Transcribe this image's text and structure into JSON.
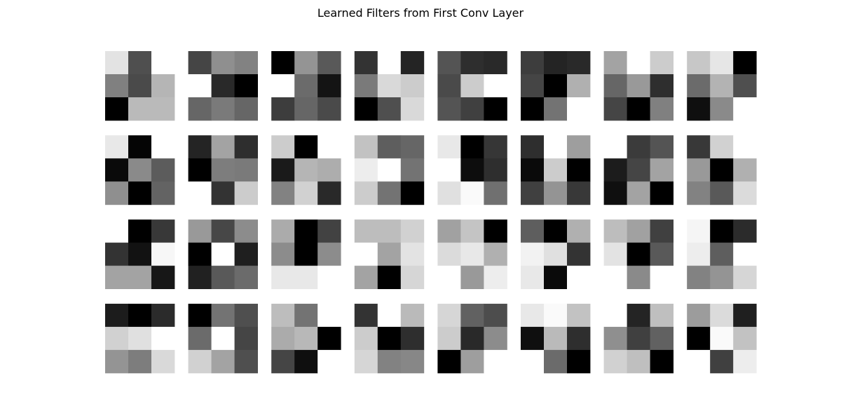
{
  "chart_data": {
    "type": "heatmap",
    "title": "Learned Filters from First Conv Layer",
    "colormap": "gray",
    "grid": false,
    "axes_visible": false,
    "filter_rows": 4,
    "filter_cols": 8,
    "kernel_size": [
      3,
      3
    ],
    "value_range": [
      0,
      1
    ],
    "filters": [
      [
        [
          0.89,
          0.31,
          1.0
        ],
        [
          0.5,
          0.29,
          0.71
        ],
        [
          0.0,
          0.73,
          0.73
        ]
      ],
      [
        [
          0.27,
          0.56,
          0.51
        ],
        [
          1.0,
          0.16,
          0.0
        ],
        [
          0.4,
          0.48,
          0.4
        ]
      ],
      [
        [
          0.0,
          0.58,
          0.35
        ],
        [
          1.0,
          0.42,
          0.08
        ],
        [
          0.24,
          0.4,
          0.29
        ]
      ],
      [
        [
          0.2,
          1.0,
          0.14
        ],
        [
          0.48,
          0.85,
          0.8
        ],
        [
          0.0,
          0.31,
          0.85
        ]
      ],
      [
        [
          0.33,
          0.18,
          0.16
        ],
        [
          0.29,
          0.8,
          1.0
        ],
        [
          0.33,
          0.25,
          0.0
        ]
      ],
      [
        [
          0.24,
          0.14,
          0.16
        ],
        [
          0.27,
          0.0,
          0.69
        ],
        [
          0.0,
          0.45,
          1.0
        ]
      ],
      [
        [
          0.64,
          1.0,
          0.8
        ],
        [
          0.4,
          0.6,
          0.18
        ],
        [
          0.27,
          0.0,
          0.5
        ]
      ],
      [
        [
          0.78,
          0.9,
          0.0
        ],
        [
          0.42,
          0.7,
          0.31
        ],
        [
          0.06,
          0.54,
          1.0
        ]
      ],
      [
        [
          0.91,
          0.02,
          1.0
        ],
        [
          0.04,
          0.54,
          0.36
        ],
        [
          0.56,
          0.0,
          0.39
        ]
      ],
      [
        [
          0.14,
          0.64,
          0.18
        ],
        [
          0.0,
          0.49,
          0.48
        ],
        [
          1.0,
          0.2,
          0.8
        ]
      ],
      [
        [
          0.8,
          0.0,
          1.0
        ],
        [
          0.1,
          0.71,
          0.68
        ],
        [
          0.51,
          0.82,
          0.16
        ]
      ],
      [
        [
          0.76,
          0.37,
          0.4
        ],
        [
          0.93,
          1.0,
          0.45
        ],
        [
          0.8,
          0.45,
          0.0
        ]
      ],
      [
        [
          0.91,
          0.0,
          0.21
        ],
        [
          1.0,
          0.05,
          0.18
        ],
        [
          0.88,
          0.98,
          0.44
        ]
      ],
      [
        [
          0.18,
          1.0,
          0.62
        ],
        [
          0.04,
          0.8,
          0.0
        ],
        [
          0.25,
          0.58,
          0.22
        ]
      ],
      [
        [
          1.0,
          0.23,
          0.33
        ],
        [
          0.11,
          0.27,
          0.64
        ],
        [
          0.06,
          0.64,
          0.0
        ]
      ],
      [
        [
          0.22,
          0.82,
          1.0
        ],
        [
          0.6,
          0.0,
          0.69
        ],
        [
          0.51,
          0.35,
          0.86
        ]
      ],
      [
        [
          1.0,
          0.0,
          0.22
        ],
        [
          0.2,
          0.07,
          0.97
        ],
        [
          0.64,
          0.64,
          0.09
        ]
      ],
      [
        [
          0.6,
          0.28,
          0.55
        ],
        [
          0.0,
          1.0,
          0.12
        ],
        [
          0.13,
          0.35,
          0.42
        ]
      ],
      [
        [
          0.67,
          0.0,
          0.26
        ],
        [
          0.55,
          0.0,
          0.55
        ],
        [
          0.91,
          0.91,
          1.0
        ]
      ],
      [
        [
          0.74,
          0.74,
          0.82
        ],
        [
          1.0,
          0.64,
          0.89
        ],
        [
          0.64,
          0.0,
          0.84
        ]
      ],
      [
        [
          0.63,
          0.77,
          0.0
        ],
        [
          0.86,
          0.91,
          0.69
        ],
        [
          1.0,
          0.6,
          0.93
        ]
      ],
      [
        [
          0.37,
          0.0,
          0.69
        ],
        [
          0.95,
          0.88,
          0.2
        ],
        [
          0.91,
          0.04,
          1.0
        ]
      ],
      [
        [
          0.74,
          0.63,
          0.25
        ],
        [
          0.89,
          0.0,
          0.35
        ],
        [
          1.0,
          0.54,
          1.0
        ]
      ],
      [
        [
          0.96,
          0.0,
          0.17
        ],
        [
          0.93,
          0.37,
          1.0
        ],
        [
          0.51,
          0.58,
          0.84
        ]
      ],
      [
        [
          0.11,
          0.0,
          0.17
        ],
        [
          0.82,
          0.88,
          1.0
        ],
        [
          0.58,
          0.49,
          0.85
        ]
      ],
      [
        [
          0.0,
          0.45,
          0.31
        ],
        [
          0.42,
          1.0,
          0.27
        ],
        [
          0.82,
          0.64,
          0.31
        ]
      ],
      [
        [
          0.74,
          0.45,
          1.0
        ],
        [
          0.67,
          0.72,
          0.0
        ],
        [
          0.27,
          0.06,
          1.0
        ]
      ],
      [
        [
          0.2,
          1.0,
          0.73
        ],
        [
          0.8,
          0.0,
          0.18
        ],
        [
          0.84,
          0.51,
          0.53
        ]
      ],
      [
        [
          0.84,
          0.38,
          0.3
        ],
        [
          0.8,
          0.16,
          0.55
        ],
        [
          0.0,
          0.62,
          1.0
        ]
      ],
      [
        [
          0.91,
          0.98,
          0.76
        ],
        [
          0.06,
          0.73,
          0.18
        ],
        [
          1.0,
          0.42,
          0.0
        ]
      ],
      [
        [
          1.0,
          0.14,
          0.75
        ],
        [
          0.56,
          0.25,
          0.38
        ],
        [
          0.82,
          0.75,
          0.0
        ]
      ],
      [
        [
          0.61,
          0.86,
          0.12
        ],
        [
          0.0,
          0.98,
          0.76
        ],
        [
          1.0,
          0.25,
          0.93
        ]
      ]
    ]
  }
}
